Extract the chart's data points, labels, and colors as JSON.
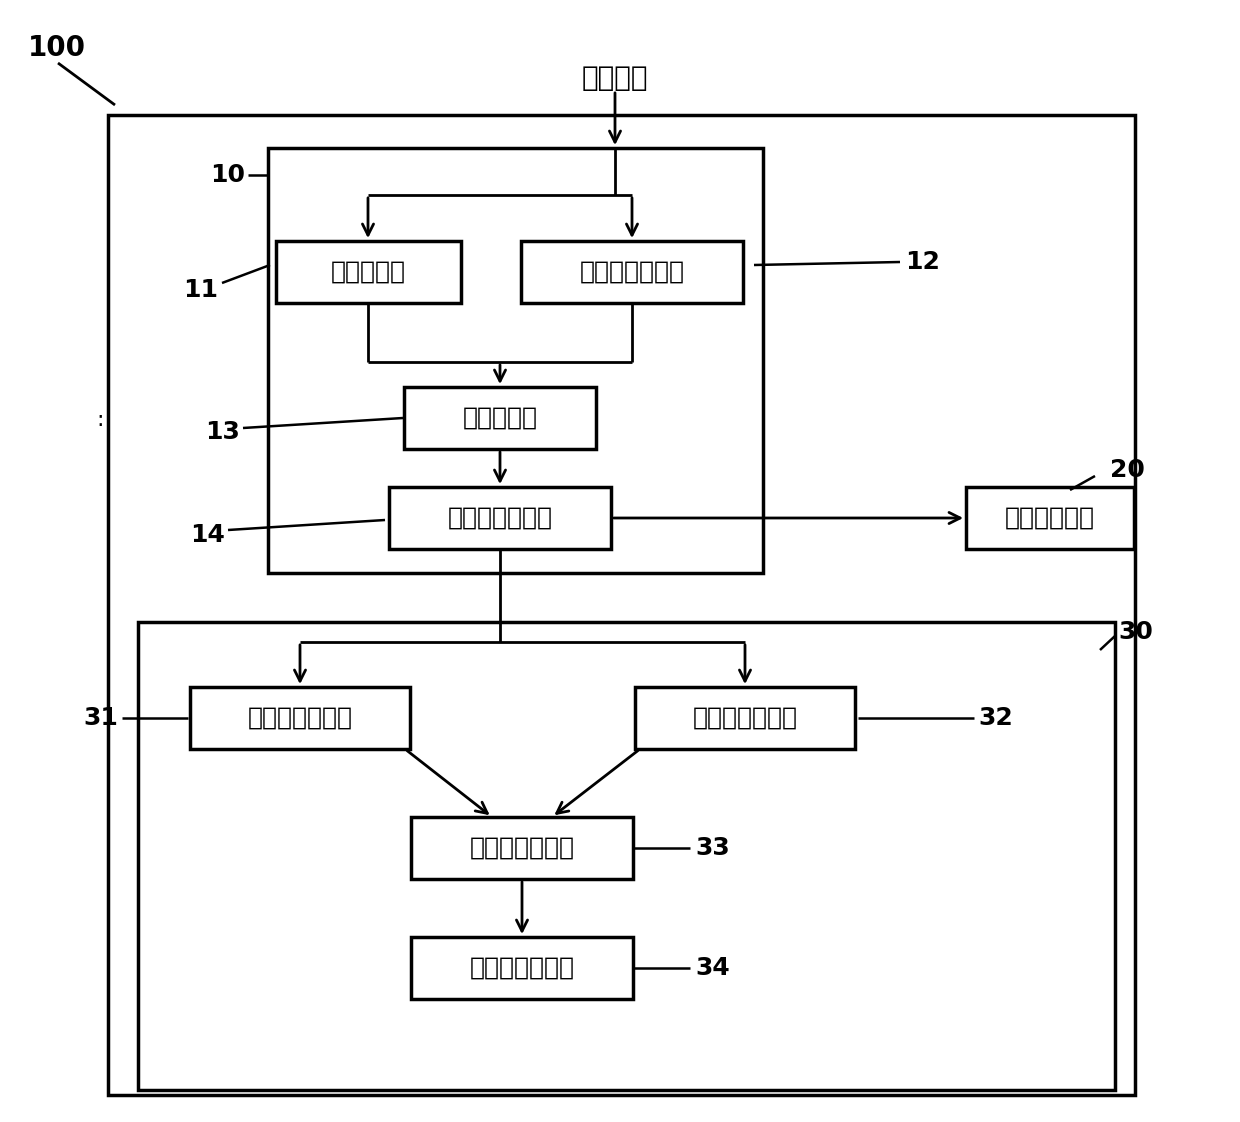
{
  "title_label": "动力电池",
  "label_100": "100",
  "label_10": "10",
  "label_11": "11",
  "label_12": "12",
  "label_13": "13",
  "label_14": "14",
  "label_20": "20",
  "label_30": "30",
  "label_31": "31",
  "label_32": "32",
  "label_33": "33",
  "label_34": "34",
  "box_11_text": "温度传感器",
  "box_12_text": "热流密度传感器",
  "box_13_text": "蓝牙发射器",
  "box_14_text": "数据接收传输器",
  "box_20_text": "数据储存模块",
  "box_31_text": "第一数据处理器",
  "box_32_text": "第二数据处理器",
  "box_33_text": "综合数据处理器",
  "box_34_text": "评价输出显示器",
  "bg_color": "#ffffff",
  "box_color": "#ffffff",
  "box_edge_color": "#000000",
  "line_color": "#000000",
  "font_size_box": 18,
  "font_size_label": 18,
  "font_size_title": 20
}
